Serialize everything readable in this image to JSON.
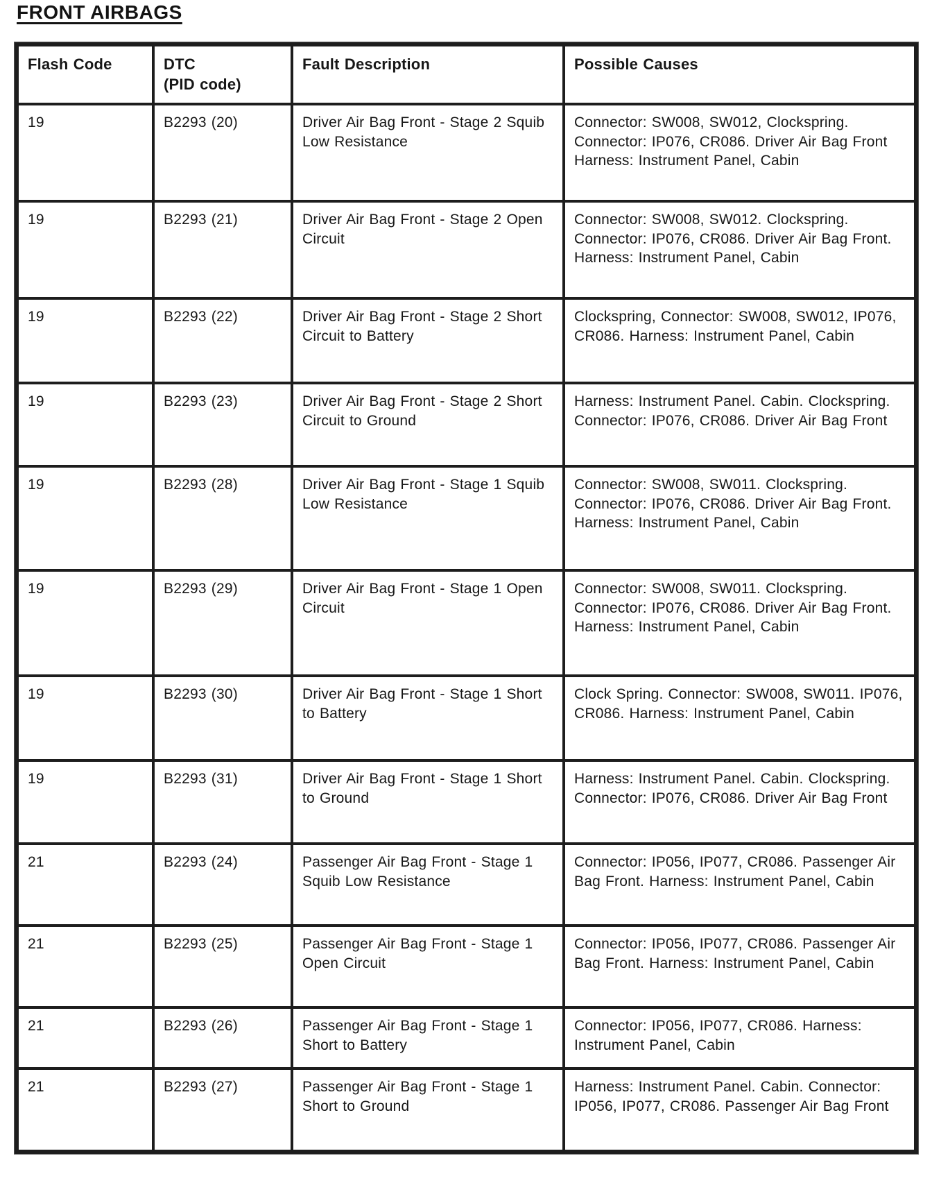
{
  "page": {
    "title": "FRONT AIRBAGS"
  },
  "table": {
    "headers": [
      "Flash Code",
      "DTC\n(PID code)",
      "Fault Description",
      "Possible Causes"
    ],
    "rows": [
      {
        "flash_code": "19",
        "dtc": "B2293 (20)",
        "fault_description": "Driver Air Bag Front - Stage 2 Squib Low Resistance",
        "possible_causes": "Connector: SW008, SW012, Clockspring. Connector: IP076, CR086. Driver Air Bag Front Harness: Instrument Panel, Cabin"
      },
      {
        "flash_code": "19",
        "dtc": "B2293 (21)",
        "fault_description": "Driver Air Bag Front - Stage 2 Open Circuit",
        "possible_causes": "Connector: SW008, SW012. Clockspring. Connector: IP076, CR086. Driver Air Bag Front. Harness: Instrument Panel, Cabin"
      },
      {
        "flash_code": "19",
        "dtc": "B2293 (22)",
        "fault_description": "Driver Air Bag Front - Stage 2 Short Circuit to Battery",
        "possible_causes": "Clockspring, Connector: SW008, SW012, IP076, CR086. Harness: Instrument Panel, Cabin"
      },
      {
        "flash_code": "19",
        "dtc": "B2293 (23)",
        "fault_description": "Driver Air Bag Front - Stage 2 Short Circuit to Ground",
        "possible_causes": "Harness: Instrument Panel. Cabin. Clockspring. Connector: IP076, CR086. Driver Air Bag Front"
      },
      {
        "flash_code": "19",
        "dtc": "B2293 (28)",
        "fault_description": "Driver Air Bag Front - Stage 1 Squib Low Resistance",
        "possible_causes": "Connector: SW008, SW011. Clockspring. Connector: IP076, CR086. Driver Air Bag Front. Harness: Instrument Panel, Cabin"
      },
      {
        "flash_code": "19",
        "dtc": "B2293 (29)",
        "fault_description": "Driver Air Bag Front - Stage 1 Open Circuit",
        "possible_causes": "Connector: SW008, SW011. Clockspring. Connector: IP076, CR086. Driver Air Bag Front. Harness: Instrument Panel, Cabin"
      },
      {
        "flash_code": "19",
        "dtc": "B2293 (30)",
        "fault_description": "Driver Air Bag Front - Stage 1 Short to Battery",
        "possible_causes": "Clock Spring. Connector: SW008, SW011. IP076, CR086. Harness: Instrument Panel, Cabin"
      },
      {
        "flash_code": "19",
        "dtc": "B2293 (31)",
        "fault_description": "Driver Air Bag Front - Stage 1 Short to Ground",
        "possible_causes": "Harness: Instrument Panel. Cabin. Clockspring. Connector: IP076, CR086. Driver Air Bag Front"
      },
      {
        "flash_code": "21",
        "dtc": "B2293 (24)",
        "fault_description": "Passenger Air Bag Front - Stage 1 Squib Low Resistance",
        "possible_causes": "Connector: IP056, IP077, CR086. Passenger Air Bag Front. Harness: Instrument Panel, Cabin"
      },
      {
        "flash_code": "21",
        "dtc": "B2293 (25)",
        "fault_description": "Passenger Air Bag Front - Stage 1 Open Circuit",
        "possible_causes": "Connector: IP056, IP077, CR086. Passenger Air Bag Front. Harness: Instrument Panel, Cabin"
      },
      {
        "flash_code": "21",
        "dtc": "B2293 (26)",
        "fault_description": "Passenger Air Bag Front - Stage 1 Short to Battery",
        "possible_causes": "Connector: IP056, IP077, CR086. Harness: Instrument Panel, Cabin"
      },
      {
        "flash_code": "21",
        "dtc": "B2293 (27)",
        "fault_description": "Passenger Air Bag Front - Stage 1 Short to Ground",
        "possible_causes": "Harness: Instrument Panel. Cabin. Connector: IP056, IP077, CR086. Passenger Air Bag Front"
      }
    ]
  }
}
